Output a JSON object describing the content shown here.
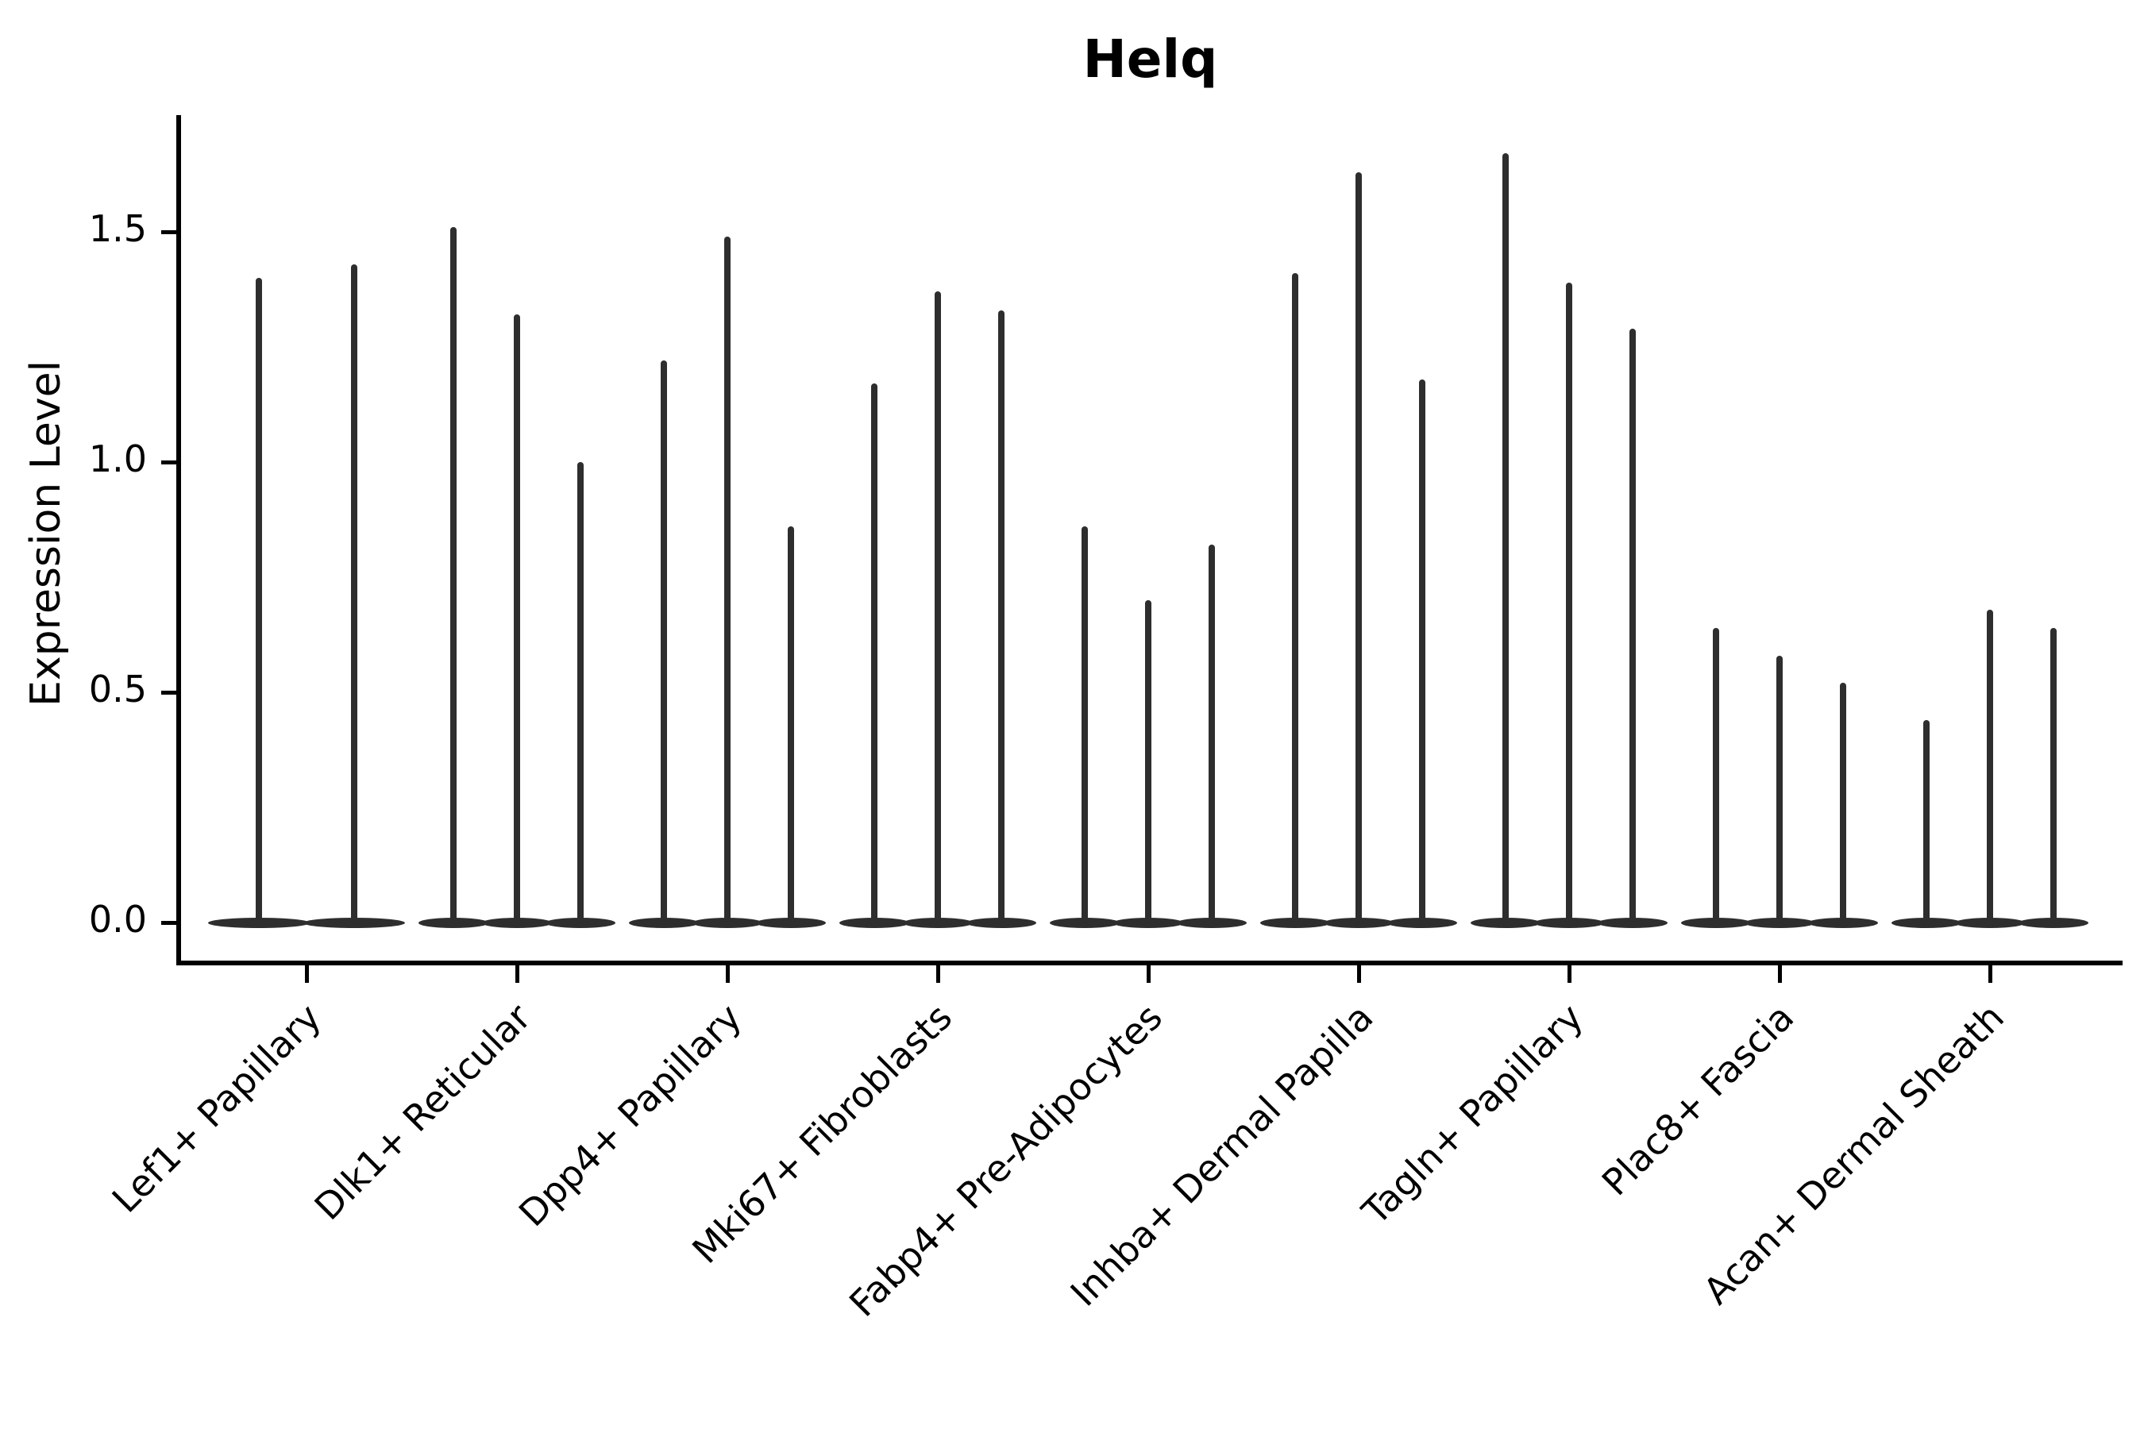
{
  "title": "Helq",
  "chart_data": {
    "type": "violin",
    "title": "Helq",
    "xlabel": "",
    "ylabel": "Expression Level",
    "grid": false,
    "legend": "none",
    "ylim": [
      -0.083,
      1.753
    ],
    "ytick_labels": [
      "0.0",
      "0.5",
      "1.0",
      "1.5"
    ],
    "ytick_values": [
      0.0,
      0.5,
      1.0,
      1.5
    ],
    "violin_color": "#2e2e2e",
    "axis_color": "#000000",
    "description": "Violin plot of Helq expression; violins are extremely thin spikes with flattened bulk at zero expression. Each cluster contains 2-3 violins.",
    "categories": [
      {
        "label": "Lef1+ Papillary",
        "violin_max_values": [
          1.4,
          1.43
        ]
      },
      {
        "label": "Dlk1+ Reticular",
        "violin_max_values": [
          1.51,
          1.32,
          1.0
        ]
      },
      {
        "label": "Dpp4+ Papillary",
        "violin_max_values": [
          1.22,
          1.49,
          0.86
        ]
      },
      {
        "label": "Mki67+ Fibroblasts",
        "violin_max_values": [
          1.17,
          1.37,
          1.33
        ]
      },
      {
        "label": "Fabp4+ Pre-Adipocytes",
        "violin_max_values": [
          0.86,
          0.7,
          0.82
        ]
      },
      {
        "label": "Inhba+ Dermal Papilla",
        "violin_max_values": [
          1.41,
          1.63,
          1.18
        ]
      },
      {
        "label": "Tagln+ Papillary",
        "violin_max_values": [
          1.67,
          1.39,
          1.29
        ]
      },
      {
        "label": "Plac8+ Fascia",
        "violin_max_values": [
          0.64,
          0.58,
          0.52
        ]
      },
      {
        "label": "Acan+ Dermal Sheath",
        "violin_max_values": [
          0.44,
          0.68,
          0.64
        ]
      }
    ]
  }
}
